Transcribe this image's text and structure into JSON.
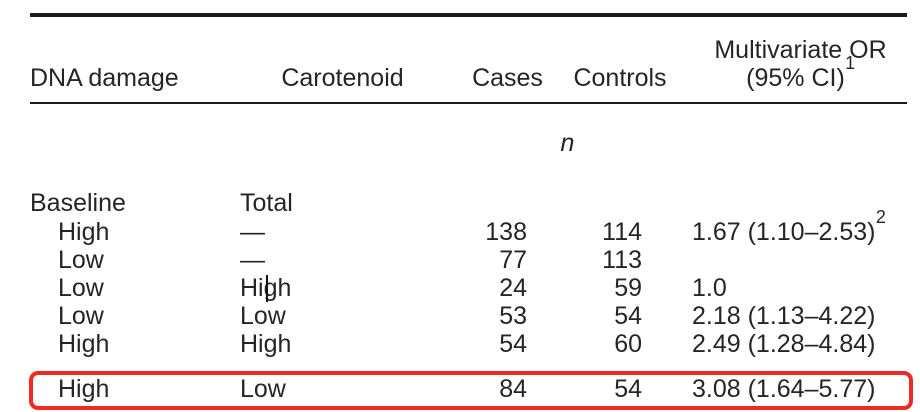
{
  "table": {
    "header": {
      "dna_damage": "DNA damage",
      "carotenoid": "Carotenoid",
      "cases": "Cases",
      "controls": "Controls",
      "or_line1": "Multivariate OR",
      "or_line2": "(95% CI)",
      "or_footnote_marker": "1"
    },
    "subheader": {
      "n_label": "n"
    },
    "rows": [
      {
        "dna": "Baseline",
        "carotenoid": "Total",
        "cases": "",
        "controls": "",
        "or": ""
      },
      {
        "dna": "High",
        "carotenoid": "—",
        "cases": "138",
        "controls": "114",
        "or": "1.67 (1.10–2.53)",
        "or_sup": "2"
      },
      {
        "dna": "Low",
        "carotenoid": "—",
        "cases": "77",
        "controls": "113",
        "or": ""
      },
      {
        "dna": "Low",
        "carotenoid": "High",
        "cases": "24",
        "controls": "59",
        "or": "1.0"
      },
      {
        "dna": "Low",
        "carotenoid": "Low",
        "cases": "53",
        "controls": "54",
        "or": "2.18 (1.13–4.22)"
      },
      {
        "dna": "High",
        "carotenoid": "High",
        "cases": "54",
        "controls": "60",
        "or": "2.49 (1.28–4.84)"
      },
      {
        "dna": "High",
        "carotenoid": "Low",
        "cases": "84",
        "controls": "54",
        "or": "3.08 (1.64–5.77)"
      }
    ]
  },
  "annotation": {
    "type": "highlight-box",
    "highlighted_row_index": 6,
    "color": "#ee2a24"
  },
  "colors": {
    "text": "#262524",
    "rule": "#1b1b1b",
    "background": "#ffffff",
    "highlight": "#ee2a24"
  }
}
